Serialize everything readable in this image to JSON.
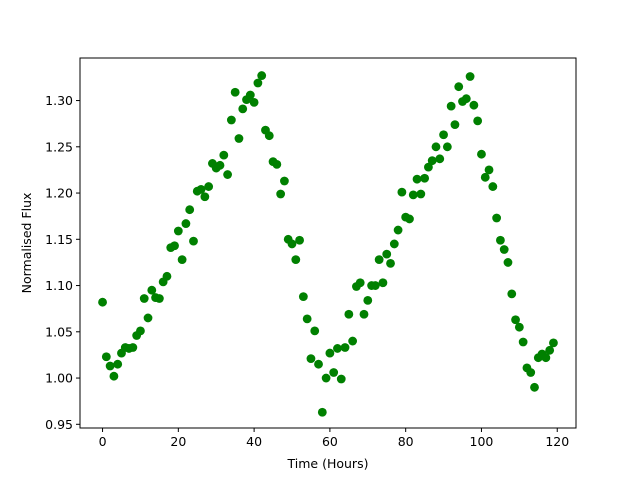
{
  "chart_data": {
    "type": "scatter",
    "title": "",
    "xlabel": "Time (Hours)",
    "ylabel": "Normalised Flux",
    "xlim": [
      -5.95,
      124.95
    ],
    "ylim": [
      0.946,
      1.346
    ],
    "xticks": [
      0,
      20,
      40,
      60,
      80,
      100,
      120
    ],
    "yticks": [
      0.95,
      1.0,
      1.05,
      1.1,
      1.15,
      1.2,
      1.25,
      1.3
    ],
    "ytick_labels": [
      "0.95",
      "1.00",
      "1.05",
      "1.10",
      "1.15",
      "1.20",
      "1.25",
      "1.30"
    ],
    "grid": false,
    "marker_color": "#008000",
    "series": [
      {
        "x": [
          0,
          1,
          2,
          3,
          4,
          5,
          6,
          7,
          8,
          9,
          10,
          11,
          12,
          13,
          14,
          15,
          16,
          17,
          18,
          19,
          20,
          21,
          22,
          23,
          24,
          25,
          26,
          27,
          28,
          29,
          30,
          31,
          32,
          33,
          34,
          35,
          36,
          37,
          38,
          39,
          40,
          41,
          42,
          43,
          44,
          45,
          46,
          47,
          48,
          49,
          50,
          51,
          52,
          53,
          54,
          55,
          56,
          57,
          58,
          59,
          60,
          61,
          62,
          63,
          64,
          65,
          66,
          67,
          68,
          69,
          70,
          71,
          72,
          73,
          74,
          75,
          76,
          77,
          78,
          79,
          80,
          81,
          82,
          83,
          84,
          85,
          86,
          87,
          88,
          89,
          90,
          91,
          92,
          93,
          94,
          95,
          96,
          97,
          98,
          99,
          100,
          101,
          102,
          103,
          104,
          105,
          106,
          107,
          108,
          109,
          110,
          111,
          112,
          113,
          114,
          115,
          116,
          117,
          118,
          119
        ],
        "y": [
          1.082,
          1.023,
          1.013,
          1.002,
          1.015,
          1.027,
          1.033,
          1.032,
          1.033,
          1.046,
          1.051,
          1.086,
          1.065,
          1.095,
          1.087,
          1.086,
          1.104,
          1.11,
          1.141,
          1.143,
          1.159,
          1.128,
          1.167,
          1.182,
          1.148,
          1.202,
          1.204,
          1.196,
          1.207,
          1.232,
          1.227,
          1.23,
          1.241,
          1.22,
          1.279,
          1.309,
          1.259,
          1.291,
          1.301,
          1.306,
          1.298,
          1.319,
          1.327,
          1.268,
          1.262,
          1.234,
          1.231,
          1.199,
          1.213,
          1.15,
          1.145,
          1.128,
          1.149,
          1.088,
          1.064,
          1.021,
          1.051,
          1.015,
          0.963,
          1.0,
          1.027,
          1.006,
          1.032,
          0.999,
          1.033,
          1.069,
          1.04,
          1.099,
          1.103,
          1.069,
          1.084,
          1.1,
          1.1,
          1.128,
          1.103,
          1.134,
          1.124,
          1.145,
          1.16,
          1.201,
          1.174,
          1.172,
          1.198,
          1.215,
          1.199,
          1.216,
          1.228,
          1.235,
          1.25,
          1.237,
          1.263,
          1.25,
          1.294,
          1.274,
          1.315,
          1.299,
          1.302,
          1.326,
          1.295,
          1.278,
          1.242,
          1.217,
          1.225,
          1.207,
          1.173,
          1.149,
          1.139,
          1.125,
          1.091,
          1.063,
          1.055,
          1.039,
          1.011,
          1.006,
          0.99,
          1.022,
          1.026,
          1.022,
          1.03,
          1.038
        ]
      }
    ]
  }
}
